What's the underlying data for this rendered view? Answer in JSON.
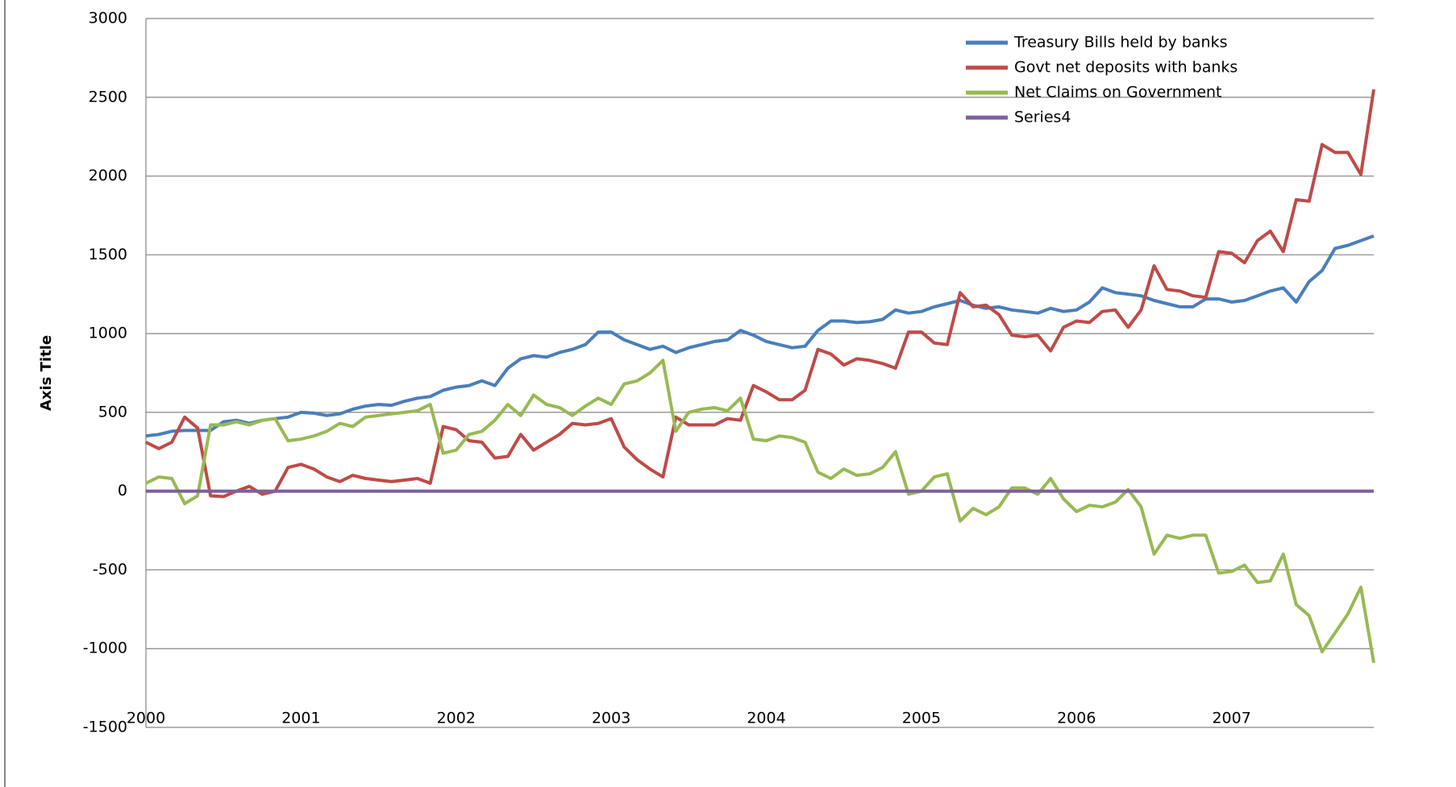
{
  "chart_data": {
    "type": "line",
    "y_label": "Axis Title",
    "categories": [
      "2000",
      null,
      null,
      null,
      null,
      null,
      null,
      null,
      null,
      null,
      null,
      null,
      "2001",
      null,
      null,
      null,
      null,
      null,
      null,
      null,
      null,
      null,
      null,
      null,
      "2002",
      null,
      null,
      null,
      null,
      null,
      null,
      null,
      null,
      null,
      null,
      null,
      "2003",
      null,
      null,
      null,
      null,
      null,
      null,
      null,
      null,
      null,
      null,
      null,
      "2004",
      null,
      null,
      null,
      null,
      null,
      null,
      null,
      null,
      null,
      null,
      null,
      "2005",
      null,
      null,
      null,
      null,
      null,
      null,
      null,
      null,
      null,
      null,
      null,
      "2006",
      null,
      null,
      null,
      null,
      null,
      null,
      null,
      null,
      null,
      null,
      null,
      "2007",
      null,
      null,
      null,
      null,
      null,
      null,
      null,
      null,
      null,
      null,
      null
    ],
    "series": [
      {
        "name": "Treasury Bills held by banks",
        "color": "#4a7ebb",
        "values": [
          350,
          360,
          380,
          385,
          385,
          385,
          440,
          450,
          430,
          450,
          460,
          470,
          500,
          495,
          480,
          490,
          520,
          540,
          550,
          545,
          570,
          590,
          600,
          640,
          660,
          670,
          700,
          670,
          780,
          840,
          860,
          850,
          880,
          900,
          930,
          1010,
          1010,
          960,
          930,
          900,
          920,
          880,
          910,
          930,
          950,
          960,
          1020,
          990,
          950,
          930,
          910,
          920,
          1020,
          1080,
          1080,
          1070,
          1075,
          1090,
          1150,
          1130,
          1140,
          1170,
          1190,
          1210,
          1180,
          1160,
          1170,
          1150,
          1140,
          1130,
          1160,
          1140,
          1150,
          1200,
          1290,
          1260,
          1250,
          1240,
          1210,
          1190,
          1170,
          1170,
          1220,
          1220,
          1200,
          1210,
          1240,
          1270,
          1290,
          1200,
          1330,
          1400,
          1540,
          1560,
          1590,
          1620
        ]
      },
      {
        "name": "Govt net deposits with banks",
        "color": "#be4b48",
        "values": [
          310,
          270,
          310,
          470,
          400,
          -30,
          -35,
          0,
          30,
          -20,
          0,
          150,
          170,
          140,
          90,
          60,
          100,
          80,
          70,
          60,
          70,
          80,
          50,
          410,
          390,
          320,
          310,
          210,
          220,
          360,
          260,
          310,
          360,
          430,
          420,
          430,
          460,
          280,
          200,
          140,
          90,
          470,
          420,
          420,
          420,
          460,
          450,
          670,
          630,
          580,
          580,
          640,
          900,
          870,
          800,
          840,
          830,
          810,
          780,
          1010,
          1010,
          940,
          930,
          1260,
          1170,
          1180,
          1120,
          990,
          980,
          990,
          890,
          1040,
          1080,
          1070,
          1140,
          1150,
          1040,
          1150,
          1430,
          1280,
          1270,
          1240,
          1230,
          1520,
          1510,
          1450,
          1590,
          1650,
          1520,
          1850,
          1840,
          2200,
          2150,
          2150,
          2010,
          2550
        ]
      },
      {
        "name": "Net Claims on Government",
        "color": "#98b954",
        "values": [
          50,
          90,
          80,
          -80,
          -30,
          420,
          420,
          440,
          420,
          450,
          460,
          320,
          330,
          350,
          380,
          430,
          410,
          470,
          480,
          490,
          500,
          510,
          550,
          240,
          260,
          360,
          380,
          450,
          550,
          480,
          610,
          550,
          530,
          480,
          540,
          590,
          550,
          680,
          700,
          750,
          830,
          380,
          500,
          520,
          530,
          510,
          590,
          330,
          320,
          350,
          340,
          310,
          120,
          80,
          140,
          100,
          110,
          150,
          250,
          -20,
          0,
          90,
          110,
          -190,
          -110,
          -150,
          -100,
          20,
          20,
          -20,
          80,
          -50,
          -130,
          -90,
          -100,
          -70,
          10,
          -100,
          -400,
          -280,
          -300,
          -280,
          -280,
          -520,
          -510,
          -470,
          -580,
          -570,
          -400,
          -720,
          -790,
          -1020,
          -900,
          -780,
          -610,
          -1090
        ]
      },
      {
        "name": "Series4",
        "color": "#7d60a0",
        "values": [
          0,
          0,
          0,
          0,
          0,
          0,
          0,
          0,
          0,
          0,
          0,
          0,
          0,
          0,
          0,
          0,
          0,
          0,
          0,
          0,
          0,
          0,
          0,
          0,
          0,
          0,
          0,
          0,
          0,
          0,
          0,
          0,
          0,
          0,
          0,
          0,
          0,
          0,
          0,
          0,
          0,
          0,
          0,
          0,
          0,
          0,
          0,
          0,
          0,
          0,
          0,
          0,
          0,
          0,
          0,
          0,
          0,
          0,
          0,
          0,
          0,
          0,
          0,
          0,
          0,
          0,
          0,
          0,
          0,
          0,
          0,
          0,
          0,
          0,
          0,
          0,
          0,
          0,
          0,
          0,
          0,
          0,
          0,
          0,
          0,
          0,
          0,
          0,
          0,
          0,
          0,
          0,
          0,
          0,
          0,
          0
        ]
      }
    ],
    "ylim": [
      -1500,
      3000
    ],
    "yticks": [
      -1500,
      -1000,
      -500,
      0,
      500,
      1000,
      1500,
      2000,
      2500,
      3000
    ],
    "grid": true,
    "legend": "top-right"
  }
}
